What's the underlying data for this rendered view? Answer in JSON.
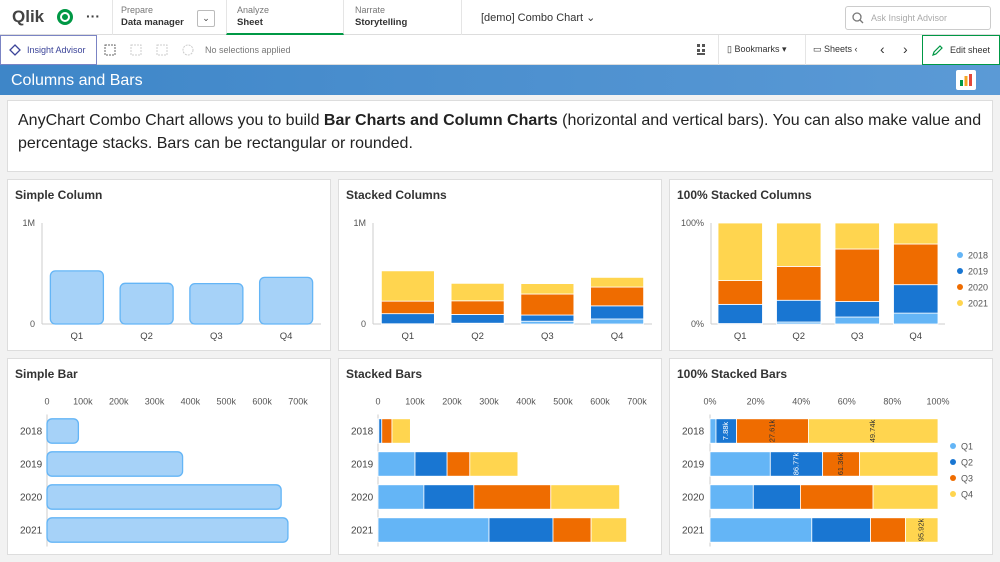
{
  "header": {
    "logo": "Qlik",
    "tabs": [
      {
        "label": "Prepare",
        "value": "Data manager"
      },
      {
        "label": "Analyze",
        "value": "Sheet"
      },
      {
        "label": "Narrate",
        "value": "Storytelling"
      }
    ],
    "app": "[demo] Combo Chart",
    "search": "Ask Insight Advisor"
  },
  "toolbar": {
    "insight_advisor": "Insight Advisor",
    "selections": "No selections applied",
    "bookmarks": "Bookmarks",
    "sheets": "Sheets",
    "edit": "Edit sheet"
  },
  "sheet_title": "Columns and Bars",
  "description": {
    "parts": [
      "AnyChart Combo Chart allows you to build ",
      "Bar Charts and Column Charts",
      " (horizontal and vertical bars). You can also make value and percentage stacks. Bars can be rectangular or rounded."
    ]
  },
  "chart_data": [
    {
      "type": "bar",
      "title": "Simple Column",
      "orientation": "vertical",
      "stacked": false,
      "rounded": true,
      "categories": [
        "Q1",
        "Q2",
        "Q3",
        "Q4"
      ],
      "values": [
        526300,
        402650,
        399970,
        461660
      ],
      "color": "#a6d2f8",
      "stroke": "#64b5f6",
      "ylim": [
        0,
        1000000
      ],
      "yticks": [
        0,
        {
          "value": 1000000,
          "label": "1M"
        }
      ]
    },
    {
      "type": "bar",
      "title": "Stacked Columns",
      "orientation": "vertical",
      "stacked": "value",
      "rounded": false,
      "categories": [
        "Q1",
        "Q2",
        "Q3",
        "Q4"
      ],
      "series": [
        {
          "name": "2018",
          "color": "#64b5f6",
          "values": [
            2300,
            7880,
            27610,
            49740
          ]
        },
        {
          "name": "2019",
          "color": "#1976d2",
          "values": [
            100000,
            86770,
            61360,
            130000
          ]
        },
        {
          "name": "2020",
          "color": "#ef6c00",
          "values": [
            124000,
            135000,
            208000,
            186000
          ]
        },
        {
          "name": "2021",
          "color": "#ffd54f",
          "values": [
            300000,
            173000,
            103000,
            95920
          ]
        }
      ],
      "ylim": [
        0,
        1000000
      ],
      "yticks": [
        0,
        {
          "value": 1000000,
          "label": "1M"
        }
      ]
    },
    {
      "type": "bar",
      "title": "100% Stacked Columns",
      "orientation": "vertical",
      "stacked": "percent",
      "rounded": false,
      "legend": "right",
      "categories": [
        "Q1",
        "Q2",
        "Q3",
        "Q4"
      ],
      "series": [
        {
          "name": "2018",
          "color": "#64b5f6",
          "values": [
            2300,
            7880,
            27610,
            49740
          ]
        },
        {
          "name": "2019",
          "color": "#1976d2",
          "values": [
            100000,
            86770,
            61360,
            130000
          ]
        },
        {
          "name": "2020",
          "color": "#ef6c00",
          "values": [
            124000,
            135000,
            208000,
            186000
          ]
        },
        {
          "name": "2021",
          "color": "#ffd54f",
          "values": [
            300000,
            173000,
            103000,
            95920
          ]
        }
      ],
      "ylim": [
        0,
        100
      ],
      "yticks": [
        {
          "value": 0,
          "label": "0%"
        },
        {
          "value": 100,
          "label": "100%"
        }
      ]
    },
    {
      "type": "bar",
      "title": "Simple Bar",
      "orientation": "horizontal",
      "stacked": false,
      "rounded": true,
      "categories": [
        "2018",
        "2019",
        "2020",
        "2021"
      ],
      "values": [
        87530,
        378130,
        653000,
        671920
      ],
      "color": "#a6d2f8",
      "stroke": "#64b5f6",
      "xlim": [
        0,
        700000
      ],
      "xticks": [
        0,
        {
          "value": 100000,
          "label": "100k"
        },
        {
          "value": 200000,
          "label": "200k"
        },
        {
          "value": 300000,
          "label": "300k"
        },
        {
          "value": 400000,
          "label": "400k"
        },
        {
          "value": 500000,
          "label": "500k"
        },
        {
          "value": 600000,
          "label": "600k"
        },
        {
          "value": 700000,
          "label": "700k"
        }
      ]
    },
    {
      "type": "bar",
      "title": "Stacked Bars",
      "orientation": "horizontal",
      "stacked": "value",
      "rounded": false,
      "categories": [
        "2018",
        "2019",
        "2020",
        "2021"
      ],
      "series": [
        {
          "name": "Q1",
          "color": "#64b5f6",
          "values": [
            2300,
            100000,
            124000,
            300000
          ]
        },
        {
          "name": "Q2",
          "color": "#1976d2",
          "values": [
            7880,
            86770,
            135000,
            173000
          ]
        },
        {
          "name": "Q3",
          "color": "#ef6c00",
          "values": [
            27610,
            61360,
            208000,
            103000
          ]
        },
        {
          "name": "Q4",
          "color": "#ffd54f",
          "values": [
            49740,
            130000,
            186000,
            95920
          ]
        }
      ],
      "xlim": [
        0,
        700000
      ],
      "xticks": [
        0,
        {
          "value": 100000,
          "label": "100k"
        },
        {
          "value": 200000,
          "label": "200k"
        },
        {
          "value": 300000,
          "label": "300k"
        },
        {
          "value": 400000,
          "label": "400k"
        },
        {
          "value": 500000,
          "label": "500k"
        },
        {
          "value": 600000,
          "label": "600k"
        },
        {
          "value": 700000,
          "label": "700k"
        }
      ]
    },
    {
      "type": "bar",
      "title": "100% Stacked Bars",
      "orientation": "horizontal",
      "stacked": "percent",
      "rounded": false,
      "legend": "right",
      "categories": [
        "2018",
        "2019",
        "2020",
        "2021"
      ],
      "series": [
        {
          "name": "Q1",
          "color": "#64b5f6",
          "values": [
            2300,
            100000,
            124000,
            300000
          ]
        },
        {
          "name": "Q2",
          "color": "#1976d2",
          "values": [
            7880,
            86770,
            135000,
            173000
          ],
          "value_labels": [
            "7.88k",
            "86.77k",
            null,
            null
          ]
        },
        {
          "name": "Q3",
          "color": "#ef6c00",
          "values": [
            27610,
            61360,
            208000,
            103000
          ],
          "value_labels": [
            "27.61k",
            "61.36k",
            null,
            null
          ]
        },
        {
          "name": "Q4",
          "color": "#ffd54f",
          "values": [
            49740,
            130000,
            186000,
            95920
          ],
          "value_labels": [
            "49.74k",
            null,
            null,
            "95.92k"
          ]
        }
      ],
      "xlim": [
        0,
        100
      ],
      "xticks": [
        {
          "value": 0,
          "label": "0%"
        },
        {
          "value": 20,
          "label": "20%"
        },
        {
          "value": 40,
          "label": "40%"
        },
        {
          "value": 60,
          "label": "60%"
        },
        {
          "value": 80,
          "label": "80%"
        },
        {
          "value": 100,
          "label": "100%"
        }
      ]
    }
  ]
}
